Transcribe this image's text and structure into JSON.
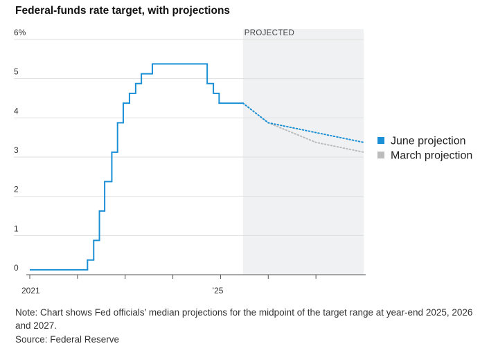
{
  "chart_data": {
    "type": "line",
    "title": "Federal-funds rate target, with projections",
    "note": "Note: Chart shows Fed officials’ median projections for the midpoint of the target range at year-end 2025, 2026 and 2027.",
    "source": "Source: Federal Reserve",
    "xlim": [
      2021,
      2028
    ],
    "xticks": [
      2021,
      {
        "value": 2025,
        "label": "’25"
      }
    ],
    "xminorticks": [
      2022,
      2023,
      2024,
      2026,
      2027
    ],
    "ylim": [
      0,
      6
    ],
    "yticks": [
      0,
      1,
      2,
      3,
      4,
      5,
      {
        "value": 6,
        "label": "6%"
      }
    ],
    "grid": true,
    "projected_region": {
      "label": "PROJECTED",
      "start": 2025.47,
      "color": "#f0f1f3"
    },
    "legend": "right",
    "series": [
      {
        "color": "#1a8fd6",
        "style": "step",
        "x": [
          2021,
          2022.21,
          2022.34,
          2022.46,
          2022.57,
          2022.72,
          2022.84,
          2022.96,
          2023.09,
          2023.22,
          2023.34,
          2023.57,
          2024.72,
          2024.85,
          2024.97
        ],
        "values": [
          0.125,
          0.375,
          0.875,
          1.625,
          2.375,
          3.125,
          3.875,
          4.375,
          4.625,
          4.875,
          5.125,
          5.375,
          4.875,
          4.625,
          4.375
        ]
      },
      {
        "name": "March projection",
        "color": "#bcbcbc",
        "style": "dotted",
        "x": [
          2025.47,
          2026,
          2027,
          2028
        ],
        "values": [
          4.375,
          3.875,
          3.375,
          3.125
        ]
      },
      {
        "name": "June projection",
        "color": "#1a8fd6",
        "style": "dotted",
        "x": [
          2025.47,
          2026,
          2027,
          2028
        ],
        "values": [
          4.375,
          3.875,
          3.625,
          3.375
        ]
      }
    ]
  }
}
